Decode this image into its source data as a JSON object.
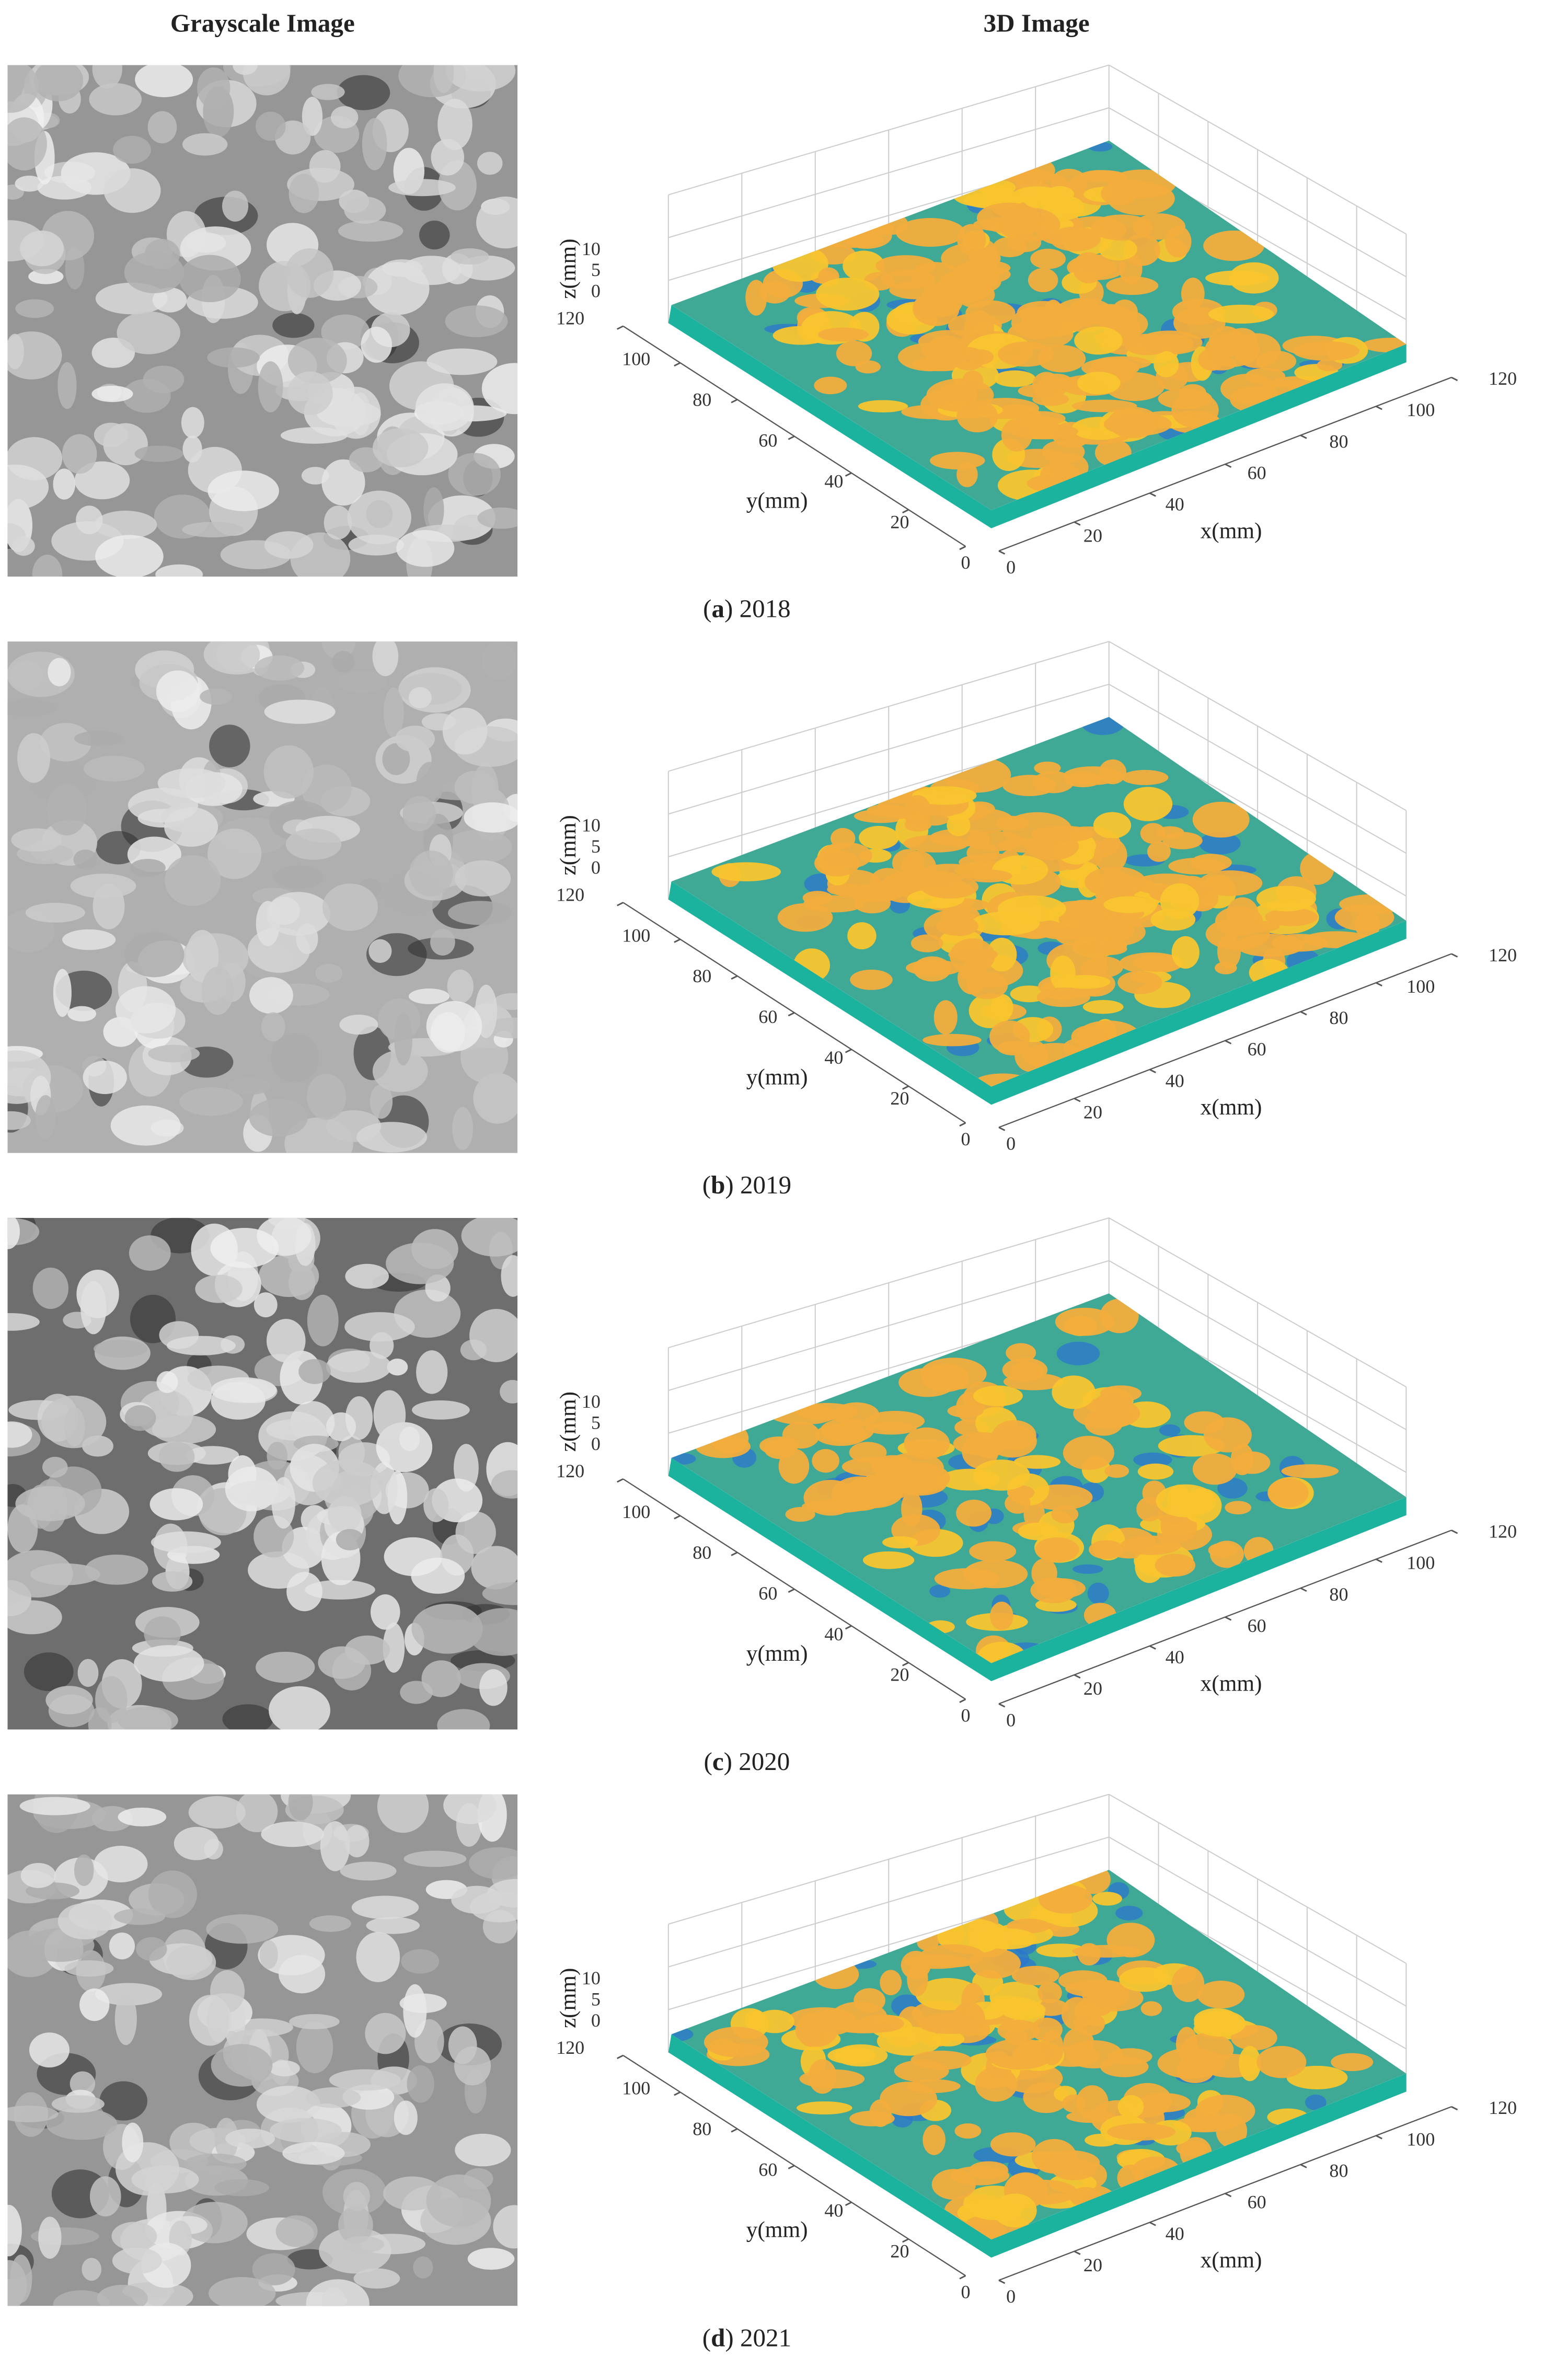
{
  "headers": {
    "left": "Grayscale Image",
    "right": "3D Image"
  },
  "axes": {
    "x_label": "x(mm)",
    "y_label": "y(mm)",
    "z_label": "z(mm)",
    "x_ticks": [
      0,
      20,
      40,
      60,
      80,
      100,
      120
    ],
    "y_ticks": [
      0,
      20,
      40,
      60,
      80,
      100,
      120
    ],
    "z_ticks": [
      0,
      5,
      10
    ]
  },
  "panels": [
    {
      "caption": [
        "(",
        "a",
        ") 2018"
      ]
    },
    {
      "caption": [
        "(",
        "b",
        ") 2019"
      ]
    },
    {
      "caption": [
        "(",
        "c",
        ") 2020"
      ]
    },
    {
      "caption": [
        "(",
        "d",
        ") 2021"
      ]
    }
  ]
}
